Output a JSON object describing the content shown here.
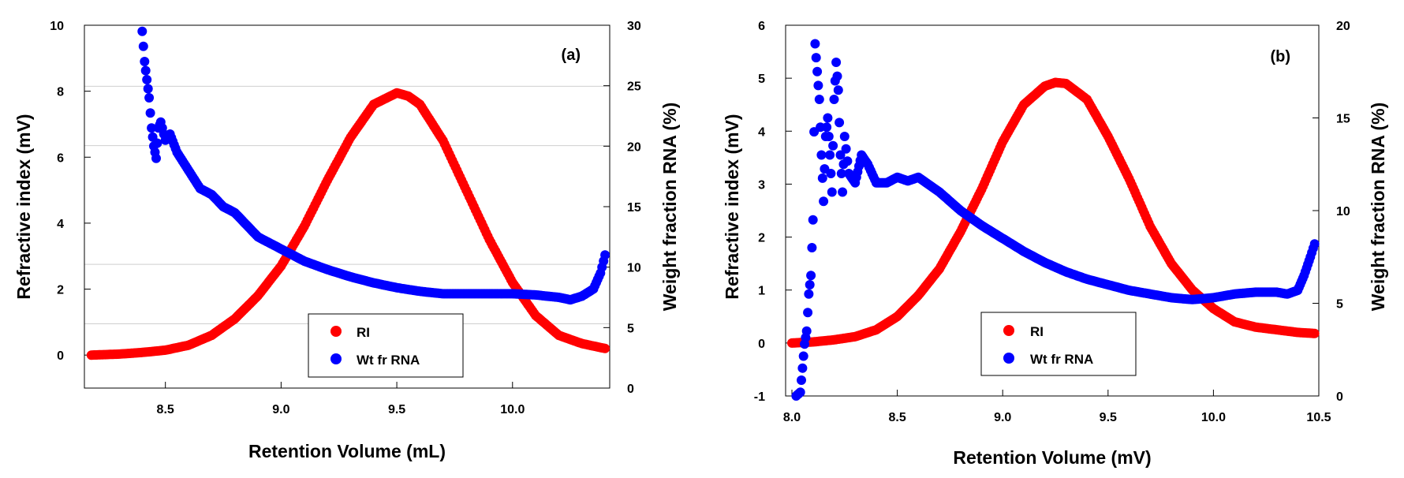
{
  "chart_data": [
    {
      "type": "scatter",
      "panel_label": "(a)",
      "xlabel": "Retention Volume (mL)",
      "ylabel": "Refractive index (mV)",
      "y2label": "Weight fraction RNA (%)",
      "xlim": [
        8.15,
        10.42
      ],
      "ylim": [
        -1,
        10
      ],
      "y2lim": [
        0,
        30
      ],
      "xticks": [
        "8.5",
        "9.0",
        "9.5",
        "10.0"
      ],
      "xtick_values": [
        8.5,
        9.0,
        9.5,
        10.0
      ],
      "yticks": [
        "0",
        "2",
        "4",
        "6",
        "8",
        "10"
      ],
      "ytick_values": [
        0,
        2,
        4,
        6,
        8,
        10
      ],
      "y2ticks": [
        "0",
        "5",
        "10",
        "15",
        "20",
        "25",
        "30"
      ],
      "y2tick_values": [
        0,
        5,
        10,
        15,
        20,
        25,
        30
      ],
      "legend_position": "bottom-center",
      "series": [
        {
          "name": "RI",
          "axis": "left",
          "color": "#ff0000",
          "x": [
            8.18,
            8.3,
            8.4,
            8.5,
            8.6,
            8.7,
            8.8,
            8.9,
            9.0,
            9.1,
            9.2,
            9.3,
            9.4,
            9.5,
            9.55,
            9.6,
            9.7,
            9.8,
            9.9,
            10.0,
            10.1,
            10.2,
            10.3,
            10.4
          ],
          "y": [
            0.0,
            0.03,
            0.08,
            0.15,
            0.3,
            0.6,
            1.1,
            1.8,
            2.7,
            3.9,
            5.3,
            6.6,
            7.6,
            7.95,
            7.85,
            7.6,
            6.5,
            5.0,
            3.5,
            2.2,
            1.2,
            0.6,
            0.35,
            0.2
          ]
        },
        {
          "name": "Wt fr RNA",
          "axis": "right",
          "color": "#0000ff",
          "x": [
            8.4,
            8.41,
            8.42,
            8.43,
            8.44,
            8.45,
            8.46,
            8.47,
            8.48,
            8.5,
            8.52,
            8.55,
            8.6,
            8.65,
            8.7,
            8.75,
            8.8,
            8.85,
            8.9,
            8.95,
            9.0,
            9.05,
            9.1,
            9.2,
            9.3,
            9.4,
            9.5,
            9.6,
            9.7,
            9.8,
            9.9,
            10.0,
            10.1,
            10.2,
            10.25,
            10.3,
            10.35,
            10.38,
            10.4
          ],
          "y": [
            29.5,
            27.0,
            25.5,
            24.0,
            21.5,
            20.0,
            19.0,
            21.5,
            22.0,
            20.5,
            21.0,
            19.5,
            18.0,
            16.5,
            16.0,
            15.0,
            14.5,
            13.5,
            12.5,
            12.0,
            11.5,
            11.0,
            10.5,
            9.8,
            9.2,
            8.7,
            8.3,
            8.0,
            7.8,
            7.8,
            7.8,
            7.8,
            7.7,
            7.5,
            7.3,
            7.6,
            8.2,
            9.5,
            11.0
          ]
        }
      ]
    },
    {
      "type": "scatter",
      "panel_label": "(b)",
      "xlabel": "Retention Volume (mV)",
      "ylabel": "Refractive index (mV)",
      "y2label": "Weight fraction RNA (%)",
      "xlim": [
        7.97,
        10.5
      ],
      "ylim": [
        -1,
        6
      ],
      "y2lim": [
        0,
        20
      ],
      "xticks": [
        "8.0",
        "8.5",
        "9.0",
        "9.5",
        "10.0",
        "10.5"
      ],
      "xtick_values": [
        8.0,
        8.5,
        9.0,
        9.5,
        10.0,
        10.5
      ],
      "yticks": [
        "-1",
        "0",
        "1",
        "2",
        "3",
        "4",
        "5",
        "6"
      ],
      "ytick_values": [
        -1,
        0,
        1,
        2,
        3,
        4,
        5,
        6
      ],
      "y2ticks": [
        "0",
        "5",
        "10",
        "15",
        "20"
      ],
      "y2tick_values": [
        0,
        5,
        10,
        15,
        20
      ],
      "legend_position": "bottom-center",
      "series": [
        {
          "name": "RI",
          "axis": "left",
          "color": "#ff0000",
          "x": [
            8.0,
            8.1,
            8.2,
            8.3,
            8.4,
            8.5,
            8.6,
            8.7,
            8.8,
            8.9,
            9.0,
            9.1,
            9.2,
            9.25,
            9.3,
            9.4,
            9.5,
            9.6,
            9.7,
            9.8,
            9.9,
            10.0,
            10.1,
            10.2,
            10.3,
            10.4,
            10.48
          ],
          "y": [
            0.0,
            0.02,
            0.06,
            0.12,
            0.25,
            0.5,
            0.9,
            1.4,
            2.1,
            2.9,
            3.8,
            4.5,
            4.85,
            4.92,
            4.9,
            4.6,
            3.9,
            3.1,
            2.2,
            1.5,
            1.0,
            0.65,
            0.4,
            0.3,
            0.25,
            0.2,
            0.18
          ]
        },
        {
          "name": "Wt fr RNA",
          "axis": "right",
          "color": "#0000ff",
          "x": [
            8.02,
            8.04,
            8.05,
            8.06,
            8.07,
            8.08,
            8.09,
            8.1,
            8.11,
            8.12,
            8.13,
            8.14,
            8.15,
            8.16,
            8.17,
            8.18,
            8.19,
            8.2,
            8.21,
            8.22,
            8.23,
            8.24,
            8.25,
            8.27,
            8.3,
            8.33,
            8.36,
            8.4,
            8.45,
            8.5,
            8.55,
            8.6,
            8.7,
            8.8,
            8.9,
            9.0,
            9.1,
            9.2,
            9.3,
            9.4,
            9.5,
            9.6,
            9.7,
            9.8,
            9.9,
            10.0,
            10.1,
            10.2,
            10.3,
            10.35,
            10.4,
            10.43,
            10.46,
            10.48
          ],
          "y": [
            0.0,
            0.2,
            1.5,
            2.8,
            3.5,
            5.5,
            6.5,
            9.5,
            19.0,
            17.5,
            16.0,
            13.0,
            10.5,
            14.0,
            15.0,
            13.0,
            11.0,
            16.0,
            18.0,
            16.5,
            13.0,
            11.0,
            14.0,
            12.0,
            11.5,
            13.0,
            12.5,
            11.5,
            11.5,
            11.8,
            11.6,
            11.8,
            11.0,
            10.0,
            9.2,
            8.5,
            7.8,
            7.2,
            6.7,
            6.3,
            6.0,
            5.7,
            5.5,
            5.3,
            5.2,
            5.3,
            5.5,
            5.6,
            5.6,
            5.5,
            5.7,
            6.5,
            7.5,
            8.2
          ]
        }
      ]
    }
  ]
}
